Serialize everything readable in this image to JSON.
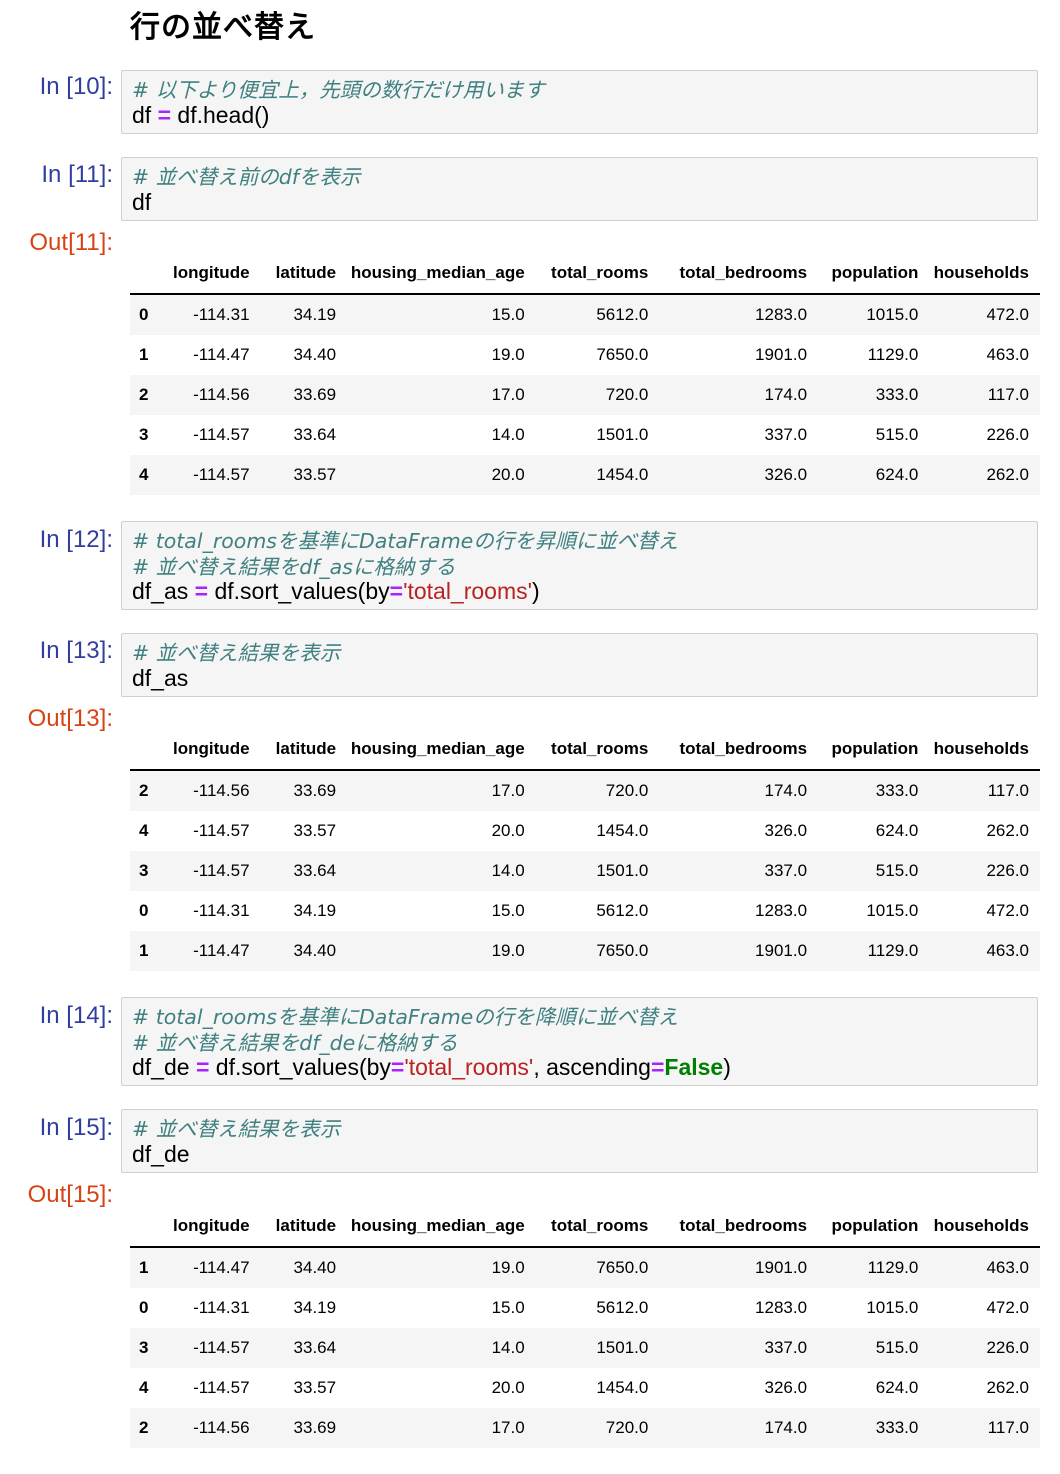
{
  "heading": "行の並べ替え",
  "cells": [
    {
      "prompt": "In [10]:",
      "lines": [
        [
          {
            "t": "# 以下より便宜上，先頭の数行だけ用います",
            "c": "comment"
          }
        ],
        [
          {
            "t": "df ",
            "c": ""
          },
          {
            "t": "=",
            "c": "op"
          },
          {
            "t": " df.head()",
            "c": ""
          }
        ]
      ]
    },
    {
      "prompt": "In [11]:",
      "lines": [
        [
          {
            "t": "# 並べ替え前のdfを表示",
            "c": "comment"
          }
        ],
        [
          {
            "t": "df",
            "c": ""
          }
        ]
      ]
    },
    {
      "prompt": "In [12]:",
      "lines": [
        [
          {
            "t": "# total_roomsを基準にDataFrameの行を昇順に並べ替え",
            "c": "comment"
          }
        ],
        [
          {
            "t": "# 並べ替え結果をdf_asに格納する",
            "c": "comment"
          }
        ],
        [
          {
            "t": "df_as ",
            "c": ""
          },
          {
            "t": "=",
            "c": "op"
          },
          {
            "t": " df.sort_values(by",
            "c": ""
          },
          {
            "t": "=",
            "c": "op"
          },
          {
            "t": "'total_rooms'",
            "c": "str"
          },
          {
            "t": ")",
            "c": ""
          }
        ]
      ]
    },
    {
      "prompt": "In [13]:",
      "lines": [
        [
          {
            "t": "# 並べ替え結果を表示",
            "c": "comment"
          }
        ],
        [
          {
            "t": "df_as",
            "c": ""
          }
        ]
      ]
    },
    {
      "prompt": "In [14]:",
      "lines": [
        [
          {
            "t": "# total_roomsを基準にDataFrameの行を降順に並べ替え",
            "c": "comment"
          }
        ],
        [
          {
            "t": "# 並べ替え結果をdf_deに格納する",
            "c": "comment"
          }
        ],
        [
          {
            "t": "df_de ",
            "c": ""
          },
          {
            "t": "=",
            "c": "op"
          },
          {
            "t": " df.sort_values(by",
            "c": ""
          },
          {
            "t": "=",
            "c": "op"
          },
          {
            "t": "'total_rooms'",
            "c": "str"
          },
          {
            "t": ", ascending",
            "c": ""
          },
          {
            "t": "=",
            "c": "op"
          },
          {
            "t": "False",
            "c": "kw"
          },
          {
            "t": ")",
            "c": ""
          }
        ]
      ]
    },
    {
      "prompt": "In [15]:",
      "lines": [
        [
          {
            "t": "# 並べ替え結果を表示",
            "c": "comment"
          }
        ],
        [
          {
            "t": "df_de",
            "c": ""
          }
        ]
      ]
    }
  ],
  "outputs": [
    {
      "prompt": "Out[11]:",
      "rows": [
        [
          "0",
          "-114.31",
          "34.19",
          "15.0",
          "5612.0",
          "1283.0",
          "1015.0",
          "472.0"
        ],
        [
          "1",
          "-114.47",
          "34.40",
          "19.0",
          "7650.0",
          "1901.0",
          "1129.0",
          "463.0"
        ],
        [
          "2",
          "-114.56",
          "33.69",
          "17.0",
          "720.0",
          "174.0",
          "333.0",
          "117.0"
        ],
        [
          "3",
          "-114.57",
          "33.64",
          "14.0",
          "1501.0",
          "337.0",
          "515.0",
          "226.0"
        ],
        [
          "4",
          "-114.57",
          "33.57",
          "20.0",
          "1454.0",
          "326.0",
          "624.0",
          "262.0"
        ]
      ]
    },
    {
      "prompt": "Out[13]:",
      "rows": [
        [
          "2",
          "-114.56",
          "33.69",
          "17.0",
          "720.0",
          "174.0",
          "333.0",
          "117.0"
        ],
        [
          "4",
          "-114.57",
          "33.57",
          "20.0",
          "1454.0",
          "326.0",
          "624.0",
          "262.0"
        ],
        [
          "3",
          "-114.57",
          "33.64",
          "14.0",
          "1501.0",
          "337.0",
          "515.0",
          "226.0"
        ],
        [
          "0",
          "-114.31",
          "34.19",
          "15.0",
          "5612.0",
          "1283.0",
          "1015.0",
          "472.0"
        ],
        [
          "1",
          "-114.47",
          "34.40",
          "19.0",
          "7650.0",
          "1901.0",
          "1129.0",
          "463.0"
        ]
      ]
    },
    {
      "prompt": "Out[15]:",
      "rows": [
        [
          "1",
          "-114.47",
          "34.40",
          "19.0",
          "7650.0",
          "1901.0",
          "1129.0",
          "463.0"
        ],
        [
          "0",
          "-114.31",
          "34.19",
          "15.0",
          "5612.0",
          "1283.0",
          "1015.0",
          "472.0"
        ],
        [
          "3",
          "-114.57",
          "33.64",
          "14.0",
          "1501.0",
          "337.0",
          "515.0",
          "226.0"
        ],
        [
          "4",
          "-114.57",
          "33.57",
          "20.0",
          "1454.0",
          "326.0",
          "624.0",
          "262.0"
        ],
        [
          "2",
          "-114.56",
          "33.69",
          "17.0",
          "720.0",
          "174.0",
          "333.0",
          "117.0"
        ]
      ]
    }
  ],
  "columns": [
    "longitude",
    "latitude",
    "housing_median_age",
    "total_rooms",
    "total_bedrooms",
    "population",
    "households"
  ],
  "colors": {
    "in_prompt": "#303f9f",
    "out_prompt": "#d84315",
    "comment": "#408080",
    "operator": "#aa22ff",
    "string": "#ba2121",
    "keyword": "#008000"
  }
}
